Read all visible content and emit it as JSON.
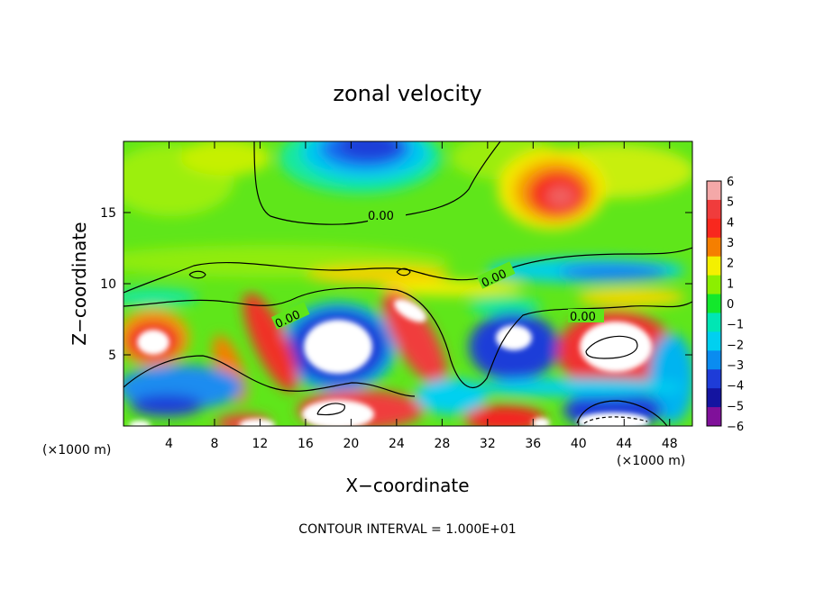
{
  "chart_data": {
    "type": "heatmap",
    "title": "zonal velocity",
    "xlabel": "X−coordinate",
    "ylabel": "Z−coordinate",
    "x_unit": "(×1000 m)",
    "z_unit": "(×1000 m)",
    "xlim": [
      0,
      50
    ],
    "ylim": [
      0,
      20
    ],
    "x_ticks": [
      4,
      8,
      12,
      16,
      20,
      24,
      28,
      32,
      36,
      40,
      44,
      48
    ],
    "y_ticks": [
      5,
      10,
      15
    ],
    "colorbar": {
      "levels": [
        6,
        5,
        4,
        3,
        2,
        1,
        0,
        -1,
        -2,
        -3,
        -4,
        -5,
        -6
      ],
      "labels": [
        "6",
        "5",
        "4",
        "3",
        "2",
        "1",
        "0",
        "−1",
        "−2",
        "−3",
        "−4",
        "−5",
        "−6"
      ],
      "colors": [
        "#f4a8a8",
        "#f03c3c",
        "#f8281e",
        "#f57f00",
        "#f4f000",
        "#8cef00",
        "#13e82c",
        "#00e6b4",
        "#00d0f0",
        "#0a8cf0",
        "#1e3cd8",
        "#1414a0",
        "#80109a"
      ]
    },
    "contour_labels": [
      "0.00",
      "0.00",
      "0.00",
      "0.00"
    ],
    "contour_interval_text": "CONTOUR INTERVAL = 1.000E+01",
    "features": [
      {
        "x": 21,
        "z": 19.2,
        "value": -5.0,
        "note": "negative core near top"
      },
      {
        "x": 38.5,
        "z": 15.8,
        "value": 5.5,
        "note": "positive core aloft"
      },
      {
        "x": 19,
        "z": 5.5,
        "value": -6.5
      },
      {
        "x": 43,
        "z": 5.5,
        "value": 6.5
      },
      {
        "x": 2,
        "z": 6,
        "value": 6.5
      },
      {
        "x": 25,
        "z": 8,
        "value": 6.5
      },
      {
        "x": 34,
        "z": 6,
        "value": -6.5
      },
      {
        "x": 20,
        "z": 1,
        "value": 6.5
      },
      {
        "x": 42,
        "z": 0.5,
        "value": -6.5
      }
    ]
  }
}
